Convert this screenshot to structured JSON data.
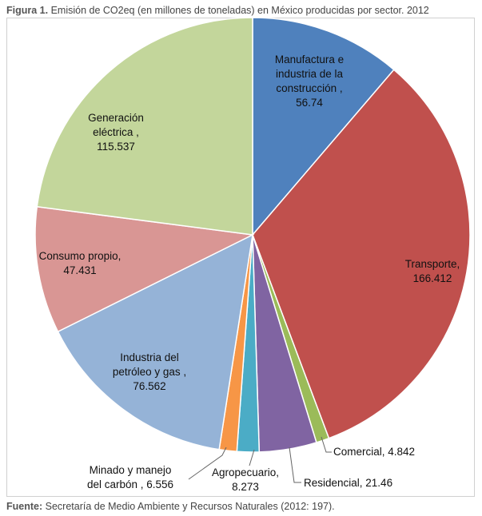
{
  "caption": {
    "label": "Figura 1.",
    "text": "Emisión de CO2eq (en millones de toneladas) en México producidas por sector. 2012"
  },
  "source": {
    "label": "Fuente:",
    "text": "Secretaría de Medio Ambiente y Recursos Naturales (2012: 197)."
  },
  "chart_data": {
    "type": "pie",
    "title": "",
    "slices": [
      {
        "label": [
          "Manufactura e",
          "industria de la",
          "construcción ,",
          "56.74"
        ],
        "name": "Manufactura e industria de la construcción",
        "value": 56.74,
        "color": "#4f81bd"
      },
      {
        "label": [
          "Transporte,",
          "166.412"
        ],
        "name": "Transporte",
        "value": 166.412,
        "color": "#c0504d"
      },
      {
        "label": [
          "Comercial, 4.842"
        ],
        "name": "Comercial",
        "value": 4.842,
        "color": "#9bbb59"
      },
      {
        "label": [
          "Residencial, 21.46"
        ],
        "name": "Residencial",
        "value": 21.46,
        "color": "#8064a2"
      },
      {
        "label": [
          "Agropecuario,",
          "8.273"
        ],
        "name": "Agropecuario",
        "value": 8.273,
        "color": "#4bacc6"
      },
      {
        "label": [
          "Minado y manejo",
          "del carbón , 6.556"
        ],
        "name": "Minado y manejo del carbón",
        "value": 6.556,
        "color": "#f79646"
      },
      {
        "label": [
          "Industria del",
          "petróleo y gas ,",
          "76.562"
        ],
        "name": "Industria del petróleo y gas",
        "value": 76.562,
        "color": "#95b3d7"
      },
      {
        "label": [
          "Consumo propio,",
          "47.431"
        ],
        "name": "Consumo propio",
        "value": 47.431,
        "color": "#d99694"
      },
      {
        "label": [
          "Generación",
          "eléctrica ,",
          "115.537"
        ],
        "name": "Generación eléctrica",
        "value": 115.537,
        "color": "#c3d69b"
      }
    ]
  }
}
